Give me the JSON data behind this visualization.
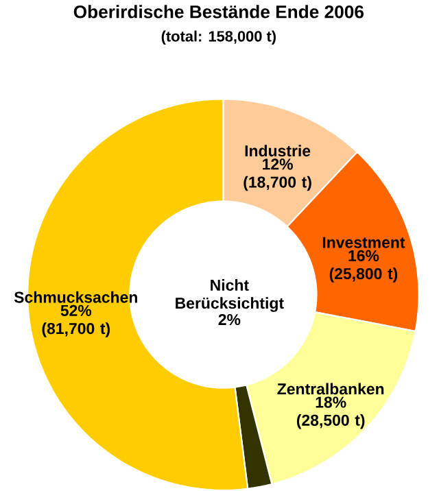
{
  "chart_data": {
    "type": "donut",
    "title": "Oberirdische Bestände Ende 2006",
    "subtitle": "(total: 158,000 t)",
    "categories": [
      "Industrie",
      "Investment",
      "Zentralbanken",
      "Nicht Berücksichtigt",
      "Schmucksachen"
    ],
    "values": [
      12,
      16,
      18,
      2,
      52
    ],
    "value_labels": [
      "12% (18,700 t)",
      "16% (25,800 t)",
      "18% (28,500 t)",
      "2%",
      "52% (81,700 t)"
    ],
    "colors": [
      "#ffcc99",
      "#ff6600",
      "#ffff99",
      "#333300",
      "#ffcc00"
    ]
  }
}
